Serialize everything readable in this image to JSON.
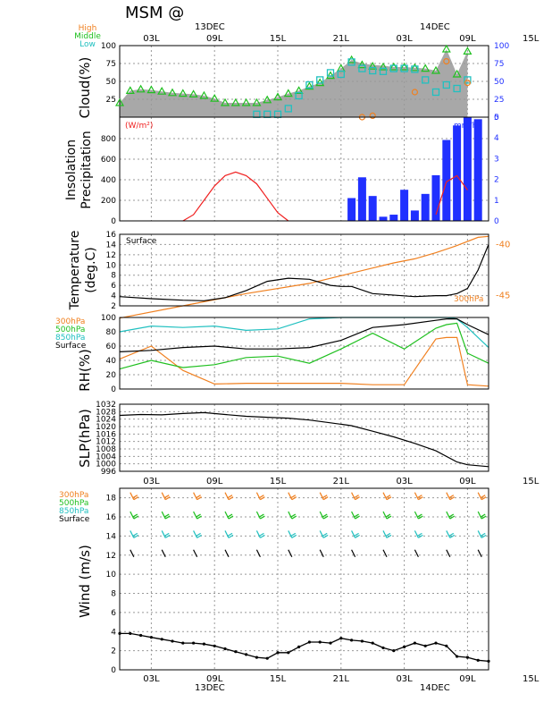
{
  "header": {
    "title": "MSM  @",
    "date_top_1": "13DEC",
    "date_top_2": "14DEC",
    "date_bottom_1": "13DEC",
    "date_bottom_2": "14DEC"
  },
  "time_ticks": [
    "03L",
    "09L",
    "15L",
    "21L",
    "03L",
    "09L",
    "15L"
  ],
  "colors": {
    "high": "#f08020",
    "middle": "#20c020",
    "low": "#20c0c0",
    "blue": "#2030ff",
    "red": "#f02020",
    "black": "#000000",
    "gray": "#a8a8a8"
  },
  "chart_data": [
    {
      "type": "area",
      "id": "cloud",
      "ylabel": "Cloud(%)",
      "ylim": [
        0,
        100
      ],
      "yticks_left": [
        "100",
        "75",
        "50",
        "25"
      ],
      "yticks_right": [
        "100",
        "75",
        "50",
        "25",
        "0"
      ],
      "legend": [
        "High",
        "Middle",
        "Low"
      ],
      "x": [
        0,
        1,
        2,
        3,
        4,
        5,
        6,
        7,
        8,
        9,
        10,
        11,
        12,
        13,
        14,
        15,
        16,
        17,
        18,
        19,
        20,
        21,
        22,
        23,
        24,
        25,
        26,
        27,
        28,
        29,
        30,
        31,
        32,
        33
      ],
      "total": [
        20,
        37,
        39,
        38,
        36,
        34,
        33,
        32,
        30,
        26,
        20,
        20,
        20,
        20,
        24,
        28,
        33,
        37,
        43,
        48,
        58,
        68,
        80,
        75,
        73,
        72,
        70,
        70,
        69,
        68,
        65,
        95,
        60,
        92
      ],
      "series": [
        {
          "name": "High",
          "values": [
            null,
            null,
            null,
            null,
            null,
            null,
            null,
            null,
            null,
            null,
            null,
            null,
            null,
            null,
            null,
            null,
            null,
            null,
            null,
            null,
            null,
            null,
            null,
            0,
            2,
            null,
            null,
            null,
            35,
            null,
            null,
            78,
            null,
            48
          ]
        },
        {
          "name": "Middle",
          "values": [
            20,
            37,
            39,
            38,
            36,
            34,
            33,
            32,
            30,
            26,
            20,
            20,
            20,
            20,
            24,
            28,
            33,
            37,
            43,
            48,
            58,
            68,
            80,
            73,
            71,
            70,
            70,
            70,
            69,
            68,
            65,
            95,
            60,
            92
          ]
        },
        {
          "name": "Low",
          "values": [
            null,
            null,
            null,
            null,
            null,
            null,
            null,
            null,
            null,
            null,
            null,
            null,
            null,
            4,
            4,
            4,
            12,
            30,
            45,
            52,
            62,
            60,
            77,
            68,
            65,
            64,
            68,
            68,
            67,
            52,
            35,
            45,
            40,
            52
          ]
        }
      ]
    },
    {
      "type": "bar",
      "id": "insolation",
      "ylabel": "Insolation Precipitation",
      "unit_left": "(W/m²)",
      "unit_right": "mm/h)",
      "ylim": [
        0,
        1000
      ],
      "yticks_left": [
        "800",
        "600",
        "400",
        "200",
        "0"
      ],
      "yticks_right": [
        "5",
        "4",
        "3",
        "2",
        "1",
        "0"
      ],
      "insolation": {
        "name": "Insolation",
        "x": [
          6,
          7,
          8,
          9,
          10,
          11,
          12,
          13,
          14,
          15,
          16,
          30,
          31,
          32,
          33
        ],
        "values": [
          0,
          60,
          200,
          340,
          440,
          475,
          440,
          360,
          220,
          80,
          0,
          60,
          380,
          440,
          300
        ]
      },
      "precip": {
        "name": "Precipitation",
        "x": [
          22,
          23,
          24,
          25,
          26,
          27,
          28,
          29,
          30,
          31,
          32,
          33,
          34,
          35
        ],
        "values": [
          1.1,
          2.1,
          1.2,
          0.2,
          0.3,
          1.5,
          0.5,
          1.3,
          2.2,
          3.9,
          4.6,
          5.0,
          4.9,
          0
        ]
      }
    },
    {
      "type": "line",
      "id": "temperature",
      "ylabel": "Temperature (deg.C)",
      "ylim": [
        2,
        16
      ],
      "yticks_left": [
        "16",
        "14",
        "12",
        "10",
        "8",
        "6",
        "4",
        "2"
      ],
      "yticks_right": [
        "-40",
        "-45"
      ],
      "label_surface": "Surface",
      "label_300": "300hPa",
      "series": [
        {
          "name": "Surface",
          "x": [
            0,
            3,
            6,
            8,
            10,
            12,
            14,
            16,
            18,
            20,
            21,
            22,
            24,
            28,
            30,
            31,
            32,
            33,
            34,
            35
          ],
          "values": [
            3.8,
            3.4,
            3.1,
            3.0,
            3.6,
            5.0,
            6.8,
            7.4,
            7.2,
            6.0,
            5.8,
            5.8,
            4.4,
            3.8,
            4.0,
            4.0,
            4.4,
            5.4,
            9.0,
            14.0
          ]
        },
        {
          "name": "300hPa",
          "x": [
            0,
            6,
            12,
            18,
            22,
            24,
            26,
            28,
            30,
            32,
            34,
            35
          ],
          "values": [
            -47.2,
            -46.0,
            -44.8,
            -43.8,
            -42.8,
            -42.3,
            -41.8,
            -41.4,
            -40.8,
            -40.1,
            -39.3,
            -39.2
          ]
        }
      ]
    },
    {
      "type": "line",
      "id": "rh",
      "ylabel": "RH(%)",
      "ylim": [
        0,
        100
      ],
      "yticks_left": [
        "100",
        "80",
        "60",
        "40",
        "20",
        "0"
      ],
      "legend": [
        "300hPa",
        "500hPa",
        "850hPa",
        "Surface"
      ],
      "series": [
        {
          "name": "300hPa",
          "x": [
            0,
            3,
            6,
            9,
            12,
            15,
            18,
            21,
            24,
            27,
            30,
            31,
            32,
            33,
            35
          ],
          "values": [
            42,
            60,
            26,
            7,
            8,
            8,
            8,
            8,
            6,
            6,
            70,
            72,
            72,
            6,
            4
          ]
        },
        {
          "name": "500hPa",
          "x": [
            0,
            3,
            6,
            9,
            12,
            15,
            18,
            21,
            24,
            27,
            30,
            31,
            32,
            33,
            35
          ],
          "values": [
            28,
            40,
            30,
            34,
            44,
            46,
            36,
            56,
            78,
            56,
            85,
            90,
            92,
            50,
            36
          ]
        },
        {
          "name": "850hPa",
          "x": [
            0,
            3,
            6,
            9,
            12,
            15,
            18,
            21,
            24,
            27,
            30,
            31,
            32,
            33,
            35
          ],
          "values": [
            80,
            88,
            86,
            88,
            82,
            84,
            98,
            100,
            100,
            100,
            100,
            100,
            98,
            86,
            58
          ]
        },
        {
          "name": "Surface",
          "x": [
            0,
            3,
            6,
            9,
            12,
            15,
            18,
            21,
            24,
            27,
            30,
            31,
            32,
            33,
            35
          ],
          "values": [
            52,
            54,
            58,
            60,
            56,
            56,
            58,
            68,
            86,
            90,
            96,
            98,
            98,
            90,
            76
          ]
        }
      ]
    },
    {
      "type": "line",
      "id": "slp",
      "ylabel": "SLP(hPa)",
      "ylim": [
        996,
        1032
      ],
      "yticks_left": [
        "1032",
        "1028",
        "1024",
        "1020",
        "1016",
        "1012",
        "1008",
        "1004",
        "1000",
        "996"
      ],
      "series": [
        {
          "name": "SLP",
          "x": [
            0,
            2,
            4,
            6,
            8,
            10,
            12,
            14,
            16,
            18,
            20,
            22,
            24,
            26,
            28,
            30,
            32,
            33,
            35
          ],
          "values": [
            1026,
            1026.5,
            1026.3,
            1027,
            1027.5,
            1026.5,
            1025.5,
            1025,
            1024.5,
            1023.5,
            1022,
            1020.5,
            1017.5,
            1014.5,
            1011,
            1007,
            1001,
            999.5,
            998.5
          ]
        }
      ]
    },
    {
      "type": "line",
      "id": "wind",
      "ylabel": "Wind  (m/s)",
      "ylim": [
        0,
        19
      ],
      "yticks_left": [
        "18",
        "16",
        "14",
        "12",
        "10",
        "8",
        "6",
        "4",
        "2",
        "0"
      ],
      "legend": [
        "300hPa",
        "500hPa",
        "850hPa",
        "Surface"
      ],
      "series": [
        {
          "name": "Surface speed",
          "x": [
            0,
            1,
            2,
            3,
            4,
            5,
            6,
            7,
            8,
            9,
            10,
            11,
            12,
            13,
            14,
            15,
            16,
            17,
            18,
            19,
            20,
            21,
            22,
            23,
            24,
            25,
            26,
            27,
            28,
            29,
            30,
            31,
            32,
            33,
            34,
            35
          ],
          "values": [
            3.8,
            3.8,
            3.6,
            3.4,
            3.2,
            3.0,
            2.8,
            2.8,
            2.7,
            2.5,
            2.2,
            1.9,
            1.6,
            1.3,
            1.2,
            1.8,
            1.8,
            2.4,
            2.9,
            2.9,
            2.8,
            3.3,
            3.1,
            3.0,
            2.8,
            2.3,
            2.0,
            2.4,
            2.8,
            2.5,
            2.8,
            2.5,
            1.4,
            1.3,
            1.0,
            0.9
          ]
        }
      ]
    }
  ]
}
